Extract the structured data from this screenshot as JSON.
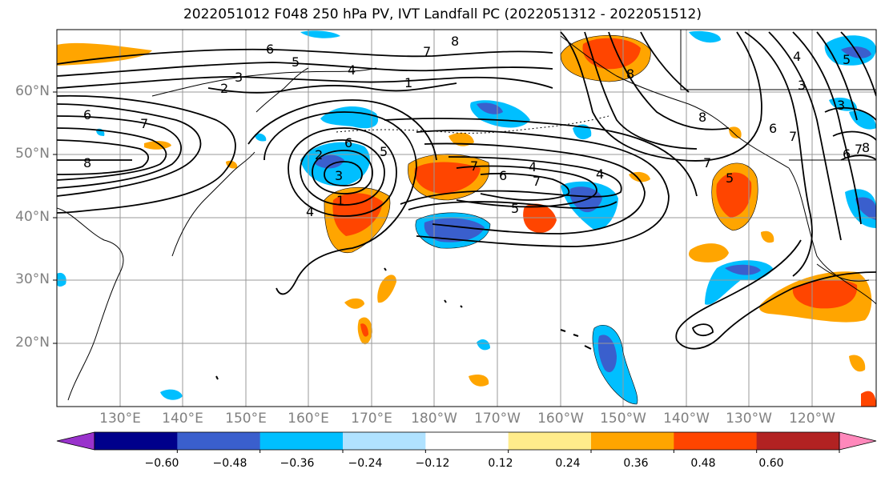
{
  "title": "2022051012 F048 250 hPa PV, IVT Landfall PC (2022051312 - 2022051512)",
  "lat_labels": [
    "60°N",
    "50°N",
    "40°N",
    "30°N",
    "20°N"
  ],
  "lon_labels": [
    "130°E",
    "140°E",
    "150°E",
    "160°E",
    "170°E",
    "180°W",
    "170°W",
    "160°W",
    "150°W",
    "140°W",
    "130°W",
    "120°W"
  ],
  "colorbar": {
    "ticks": [
      "−0.60",
      "−0.48",
      "−0.36",
      "−0.24",
      "−0.12",
      "0.12",
      "0.24",
      "0.36",
      "0.48",
      "0.60"
    ],
    "colors": [
      "#9932cc",
      "#00008b",
      "#3a5fcd",
      "#00bfff",
      "#b0e2ff",
      "#ffffff",
      "#ffec8b",
      "#ffa500",
      "#ff4500",
      "#b22222",
      "#ff88bb"
    ]
  },
  "contour_labels": [
    "6",
    "5",
    "4",
    "3",
    "2",
    "1",
    "6",
    "7",
    "8",
    "8",
    "7",
    "6",
    "5",
    "4",
    "3",
    "2",
    "1",
    "4",
    "7",
    "7",
    "6",
    "5",
    "4",
    "7",
    "5",
    "8",
    "8",
    "7",
    "6",
    "5",
    "3",
    "4",
    "3",
    "6",
    "7",
    "8"
  ],
  "colors": {
    "contour": "#000000",
    "coast": "#000000",
    "grid": "#999999",
    "axis_label": "#808080"
  }
}
